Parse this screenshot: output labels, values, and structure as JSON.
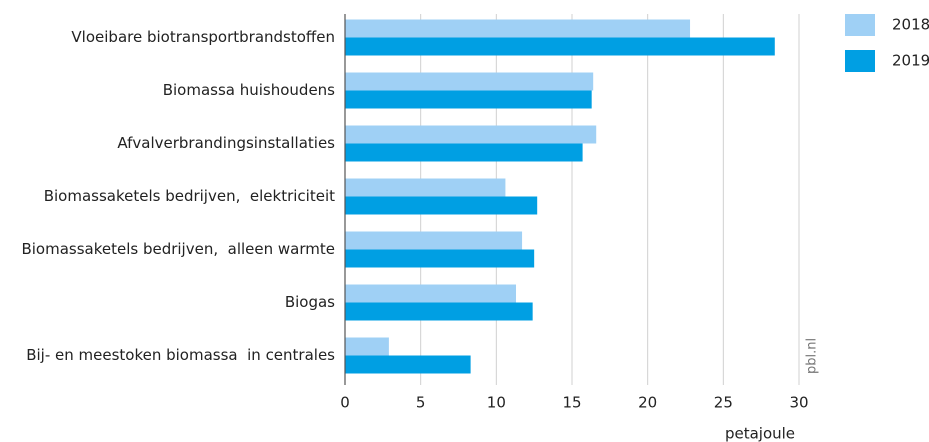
{
  "chart_data": {
    "type": "barh",
    "categories": [
      "Vloeibare biotransportbrandstoffen",
      "Biomassa huishoudens",
      "Afvalverbrandingsinstallaties",
      "Biomassaketels bedrijven,  elektriciteit",
      "Biomassaketels bedrijven,  alleen warmte",
      "Biogas",
      "Bij- en meestoken biomassa  in centrales"
    ],
    "series": [
      {
        "name": "2018",
        "color": "#9fd0f5",
        "values": [
          22.8,
          16.4,
          16.6,
          10.6,
          11.7,
          11.3,
          2.9
        ]
      },
      {
        "name": "2019",
        "color": "#009fe3",
        "values": [
          28.4,
          16.3,
          15.7,
          12.7,
          12.5,
          12.4,
          8.3
        ]
      }
    ],
    "xlabel": "petajoule",
    "xlim": [
      0,
      30
    ],
    "xticks": [
      0,
      5,
      10,
      15,
      20,
      25,
      30
    ],
    "grid": true,
    "legend": "top-right",
    "source": "pbl.nl"
  }
}
